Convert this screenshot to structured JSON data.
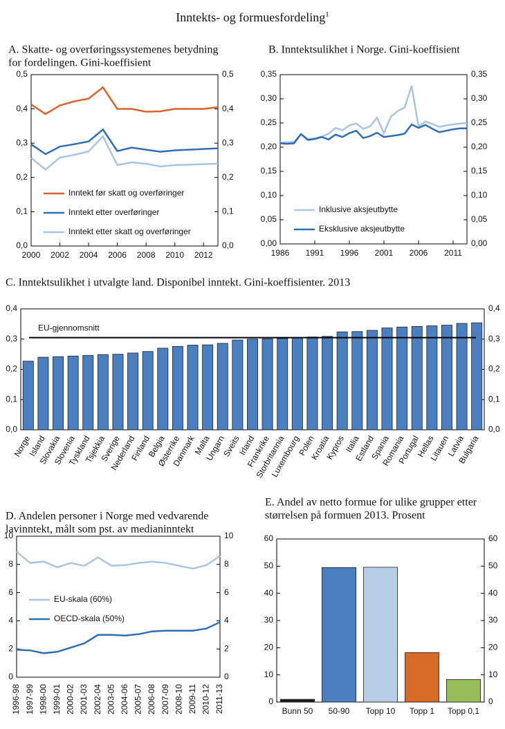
{
  "title": "Inntekts- og formuesfordeling",
  "footnote_mark": "1",
  "chart_data": [
    {
      "type": "line",
      "title": [
        "A. Skatte- og overføringssystemenes betydning",
        "for fordelingen. Gini-koeffisient"
      ],
      "x": [
        2000,
        2001,
        2002,
        2003,
        2004,
        2005,
        2006,
        2007,
        2008,
        2009,
        2010,
        2011,
        2012,
        2013
      ],
      "xlim": [
        2000,
        2013
      ],
      "xticks": [
        2000,
        2002,
        2004,
        2006,
        2008,
        2010,
        2012
      ],
      "ylim": [
        0,
        0.5
      ],
      "yticks": [
        {
          "value": 0,
          "label": "0,0"
        },
        {
          "value": 0.1,
          "label": "0,1"
        },
        {
          "value": 0.2,
          "label": "0,2"
        },
        {
          "value": 0.3,
          "label": "0,3"
        },
        {
          "value": 0.4,
          "label": "0,4"
        },
        {
          "value": 0.5,
          "label": "0,5"
        }
      ],
      "y2lim": [
        0,
        0.5
      ],
      "y2ticks": [
        {
          "value": 0,
          "label": "0,0"
        },
        {
          "value": 0.1,
          "label": "0,1"
        },
        {
          "value": 0.2,
          "label": "0,2"
        },
        {
          "value": 0.3,
          "label": "0,3"
        },
        {
          "value": 0.4,
          "label": "0,4"
        },
        {
          "value": 0.5,
          "label": "0,5"
        }
      ],
      "legend": "lower left",
      "series": [
        {
          "name": "Inntekt før skatt og overføringer",
          "color": "#d9622b",
          "values": [
            0.413,
            0.385,
            0.41,
            0.422,
            0.43,
            0.463,
            0.4,
            0.4,
            0.392,
            0.393,
            0.4,
            0.4,
            0.4,
            0.405
          ]
        },
        {
          "name": "Inntekt etter overføringer",
          "color": "#2f6db5",
          "values": [
            0.297,
            0.268,
            0.29,
            0.297,
            0.305,
            0.34,
            0.277,
            0.287,
            0.281,
            0.275,
            0.279,
            0.281,
            0.283,
            0.285
          ]
        },
        {
          "name": "Inntekt etter skatt og overføringer",
          "color": "#a9c4e3",
          "values": [
            0.257,
            0.223,
            0.258,
            0.266,
            0.276,
            0.32,
            0.236,
            0.244,
            0.24,
            0.232,
            0.236,
            0.237,
            0.239,
            0.24
          ]
        }
      ]
    },
    {
      "type": "line",
      "title": [
        "B.  Inntektsulikhet i Norge. Gini-koeffisient"
      ],
      "x": [
        1986,
        1987,
        1988,
        1989,
        1990,
        1991,
        1992,
        1993,
        1994,
        1995,
        1996,
        1997,
        1998,
        1999,
        2000,
        2001,
        2002,
        2003,
        2004,
        2005,
        2006,
        2007,
        2008,
        2009,
        2010,
        2011,
        2012,
        2013
      ],
      "xlim": [
        1986,
        2013
      ],
      "xticks": [
        1986,
        1991,
        1996,
        2001,
        2006,
        2011
      ],
      "ylim": [
        0,
        0.35
      ],
      "yticks": [
        {
          "value": 0,
          "label": "0,00"
        },
        {
          "value": 0.05,
          "label": "0,05"
        },
        {
          "value": 0.1,
          "label": "0,10"
        },
        {
          "value": 0.15,
          "label": "0,15"
        },
        {
          "value": 0.2,
          "label": "0,20"
        },
        {
          "value": 0.25,
          "label": "0,25"
        },
        {
          "value": 0.3,
          "label": "0,30"
        },
        {
          "value": 0.35,
          "label": "0,35"
        }
      ],
      "y2lim": [
        0,
        0.35
      ],
      "y2ticks": [
        {
          "value": 0,
          "label": "0,00"
        },
        {
          "value": 0.05,
          "label": "0,05"
        },
        {
          "value": 0.1,
          "label": "0,10"
        },
        {
          "value": 0.15,
          "label": "0,15"
        },
        {
          "value": 0.2,
          "label": "0,20"
        },
        {
          "value": 0.25,
          "label": "0,25"
        },
        {
          "value": 0.3,
          "label": "0,30"
        },
        {
          "value": 0.35,
          "label": "0,35"
        }
      ],
      "legend": "lower center",
      "series": [
        {
          "name": "Inklusive aksjeutbytte",
          "color": "#a9c4e3",
          "values": [
            0.21,
            0.21,
            0.211,
            0.227,
            0.217,
            0.218,
            0.222,
            0.228,
            0.24,
            0.235,
            0.245,
            0.249,
            0.238,
            0.243,
            0.261,
            0.229,
            0.263,
            0.275,
            0.282,
            0.327,
            0.243,
            0.253,
            0.248,
            0.242,
            0.245,
            0.247,
            0.249,
            0.25
          ]
        },
        {
          "name": "Eksklusive aksjeutbytte",
          "color": "#2f6db5",
          "values": [
            0.208,
            0.207,
            0.208,
            0.227,
            0.215,
            0.217,
            0.221,
            0.216,
            0.226,
            0.221,
            0.229,
            0.234,
            0.219,
            0.223,
            0.23,
            0.221,
            0.223,
            0.225,
            0.228,
            0.247,
            0.24,
            0.246,
            0.238,
            0.231,
            0.234,
            0.237,
            0.239,
            0.239
          ]
        }
      ]
    },
    {
      "type": "bar",
      "title": [
        "C. Inntektsulikhet i utvalgte land. Disponibel inntekt. Gini-koeffisienter. 2013"
      ],
      "categories": [
        "Norge",
        "Island",
        "Slovakia",
        "Slovenia",
        "Tyskland",
        "Tsjekkia",
        "Sverige",
        "Nederland",
        "Finland",
        "Belgia",
        "Østerrike",
        "Danmark",
        "Malta",
        "Ungarn",
        "Sveits",
        "Irland",
        "Frankrike",
        "Storbritannia",
        "Luxembourg",
        "Polen",
        "Kroatia",
        "Kypros",
        "Italia",
        "Estland",
        "Spania",
        "Romania",
        "Portugal",
        "Hellas",
        "Litauen",
        "Latvia",
        "Bulgaria"
      ],
      "values": [
        0.227,
        0.24,
        0.242,
        0.244,
        0.246,
        0.249,
        0.25,
        0.254,
        0.259,
        0.27,
        0.276,
        0.28,
        0.281,
        0.286,
        0.297,
        0.3,
        0.301,
        0.302,
        0.304,
        0.307,
        0.309,
        0.324,
        0.325,
        0.329,
        0.337,
        0.34,
        0.342,
        0.344,
        0.346,
        0.352,
        0.354
      ],
      "color": "#4a7fc1",
      "reference_line": {
        "label": "EU-gjennomsnitt",
        "value": 0.305
      },
      "ylim": [
        0,
        0.4
      ],
      "yticks": [
        {
          "value": 0,
          "label": "0,0"
        },
        {
          "value": 0.1,
          "label": "0,1"
        },
        {
          "value": 0.2,
          "label": "0,2"
        },
        {
          "value": 0.3,
          "label": "0,3"
        },
        {
          "value": 0.4,
          "label": "0,4"
        }
      ],
      "y2lim": [
        0,
        0.4
      ],
      "y2ticks": [
        {
          "value": 0,
          "label": "0,0"
        },
        {
          "value": 0.1,
          "label": "0,1"
        },
        {
          "value": 0.2,
          "label": "0,2"
        },
        {
          "value": 0.3,
          "label": "0,3"
        },
        {
          "value": 0.4,
          "label": "0,4"
        }
      ]
    },
    {
      "type": "line",
      "title": [
        "D. Andelen personer i Norge med vedvarende",
        "lavinntekt, målt som pst. av medianinntekt"
      ],
      "categories": [
        "1996-98",
        "1997-99",
        "1998-00",
        "1999-01",
        "2000-02",
        "2001-03",
        "2002-04",
        "2003-05",
        "2004-06",
        "2005-07",
        "2006-08",
        "2007-09",
        "2008-10",
        "2009-11",
        "2010-12",
        "2011-13"
      ],
      "ylim": [
        0,
        10
      ],
      "yticks": [
        0,
        2,
        4,
        6,
        8,
        10
      ],
      "y2lim": [
        0,
        10
      ],
      "y2ticks": [
        0,
        2,
        4,
        6,
        8,
        10
      ],
      "legend": "middle left",
      "series": [
        {
          "name": "EU-skala (60%)",
          "color": "#a9c4e3",
          "values": [
            8.9,
            8.1,
            8.2,
            7.8,
            8.1,
            7.9,
            8.5,
            7.9,
            7.95,
            8.1,
            8.2,
            8.1,
            7.9,
            7.7,
            7.95,
            8.6
          ]
        },
        {
          "name": "OECD-skala (50%)",
          "color": "#2f6db5",
          "values": [
            1.95,
            1.9,
            1.7,
            1.8,
            2.1,
            2.4,
            3.0,
            3.0,
            2.95,
            3.05,
            3.25,
            3.3,
            3.3,
            3.3,
            3.45,
            3.9
          ]
        }
      ]
    },
    {
      "type": "bar",
      "title": [
        "E.  Andel av netto formue for ulike grupper etter",
        "størrelsen på formuen 2013. Prosent"
      ],
      "categories": [
        "Bunn 50",
        "50-90",
        "Topp 10",
        "Topp 1",
        "Topp 0,1"
      ],
      "values": [
        1.0,
        49.5,
        49.6,
        18.2,
        8.3
      ],
      "colors": [
        "#1a1a1a",
        "#4a7fc1",
        "#b8cde6",
        "#d86a27",
        "#96bd59"
      ],
      "ylim": [
        0,
        60
      ],
      "yticks": [
        0,
        10,
        20,
        30,
        40,
        50,
        60
      ],
      "y2lim": [
        0,
        60
      ],
      "y2ticks": [
        0,
        10,
        20,
        30,
        40,
        50,
        60
      ]
    }
  ]
}
